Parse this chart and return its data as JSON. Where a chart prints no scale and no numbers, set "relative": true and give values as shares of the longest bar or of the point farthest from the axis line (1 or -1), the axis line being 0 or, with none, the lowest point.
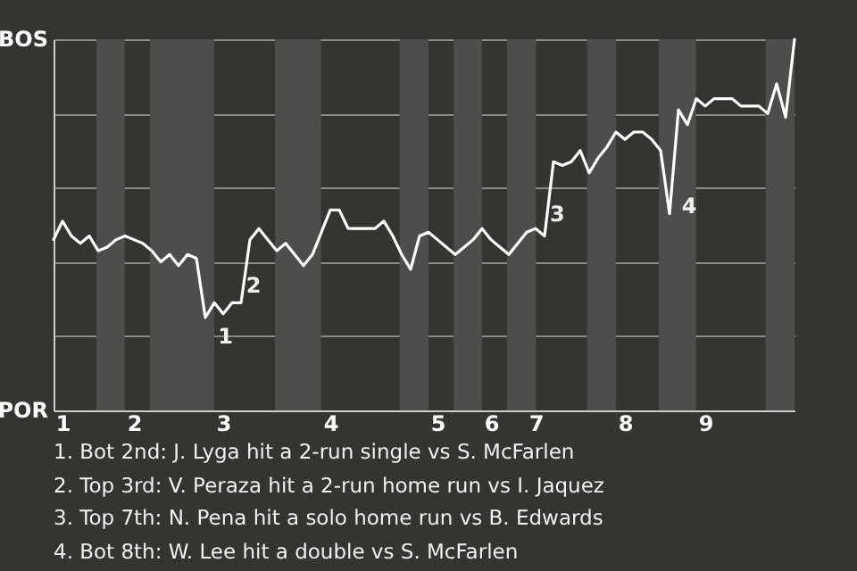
{
  "chart_data": {
    "type": "line",
    "relative": true,
    "categories": [
      null,
      "1",
      null,
      null,
      null,
      null,
      null,
      null,
      null,
      "2",
      null,
      null,
      null,
      null,
      null,
      null,
      null,
      null,
      null,
      "3",
      null,
      null,
      null,
      null,
      null,
      null,
      null,
      null,
      null,
      null,
      null,
      "4",
      null,
      null,
      null,
      null,
      null,
      null,
      null,
      null,
      null,
      null,
      null,
      "5",
      null,
      null,
      null,
      null,
      null,
      "6",
      null,
      null,
      null,
      null,
      "7",
      null,
      null,
      null,
      null,
      null,
      null,
      null,
      null,
      null,
      "8",
      null,
      null,
      null,
      null,
      null,
      null,
      null,
      null,
      "9",
      null,
      null,
      null,
      null,
      null,
      null,
      null,
      null,
      null,
      null
    ],
    "series": [
      {
        "color": "#ffffff",
        "values": [
          0.46,
          0.51,
          0.47,
          0.45,
          0.47,
          0.43,
          0.44,
          0.46,
          0.47,
          0.46,
          0.45,
          0.43,
          0.4,
          0.42,
          0.39,
          0.42,
          0.41,
          0.25,
          0.29,
          0.26,
          0.29,
          0.29,
          0.46,
          0.49,
          0.46,
          0.43,
          0.45,
          0.42,
          0.39,
          0.42,
          0.48,
          0.54,
          0.54,
          0.49,
          0.49,
          0.49,
          0.49,
          0.51,
          0.47,
          0.42,
          0.38,
          0.47,
          0.48,
          0.46,
          0.44,
          0.42,
          0.44,
          0.46,
          0.49,
          0.46,
          0.44,
          0.42,
          0.45,
          0.48,
          0.49,
          0.47,
          0.67,
          0.66,
          0.67,
          0.7,
          0.64,
          0.68,
          0.71,
          0.75,
          0.73,
          0.75,
          0.75,
          0.73,
          0.7,
          0.53,
          0.81,
          0.77,
          0.84,
          0.82,
          0.84,
          0.84,
          0.84,
          0.82,
          0.82,
          0.82,
          0.8,
          0.88,
          0.79,
          1.0
        ]
      }
    ],
    "grid": "y",
    "marker": "none",
    "line_style": "solid",
    "annotations": [
      "BOS",
      "POR",
      "1",
      "2",
      "3",
      "4",
      "1. Bot 2nd: J. Lyga hit a 2-run single vs S. McFarlen",
      "2. Top 3rd: V. Peraza hit a 2-run home run vs I. Jaquez",
      "3. Top 7th: N. Pena hit a solo home run vs B. Edwards",
      "4. Bot 8th: W. Lee hit a double vs S. McFarlen"
    ]
  }
}
